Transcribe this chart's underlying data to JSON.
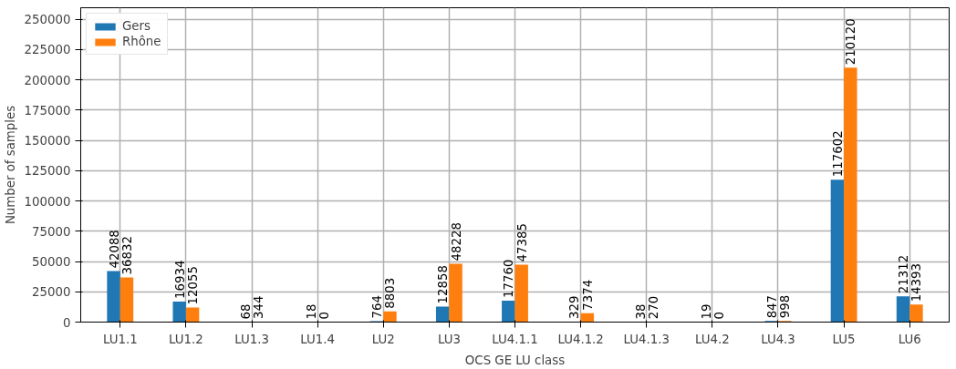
{
  "chart_data": {
    "type": "bar",
    "xlabel": "OCS GE LU class",
    "ylabel": "Number of samples",
    "categories": [
      "LU1.1",
      "LU1.2",
      "LU1.3",
      "LU1.4",
      "LU2",
      "LU3",
      "LU4.1.1",
      "LU4.1.2",
      "LU4.1.3",
      "LU4.2",
      "LU4.3",
      "LU5",
      "LU6"
    ],
    "series": [
      {
        "name": "Gers",
        "color": "#1f77b4",
        "values": [
          42088,
          16934,
          68,
          18,
          764,
          12858,
          17760,
          329,
          38,
          19,
          847,
          117602,
          21312
        ]
      },
      {
        "name": "Rhône",
        "color": "#ff7f0e",
        "values": [
          36832,
          12055,
          344,
          0,
          8803,
          48228,
          47385,
          7374,
          270,
          0,
          998,
          210120,
          14393
        ]
      }
    ],
    "ylim": [
      0,
      259500
    ],
    "yticks": [
      0,
      25000,
      50000,
      75000,
      100000,
      125000,
      150000,
      175000,
      200000,
      225000,
      250000
    ],
    "grid": true,
    "legend": "top left",
    "data_labels": true
  }
}
